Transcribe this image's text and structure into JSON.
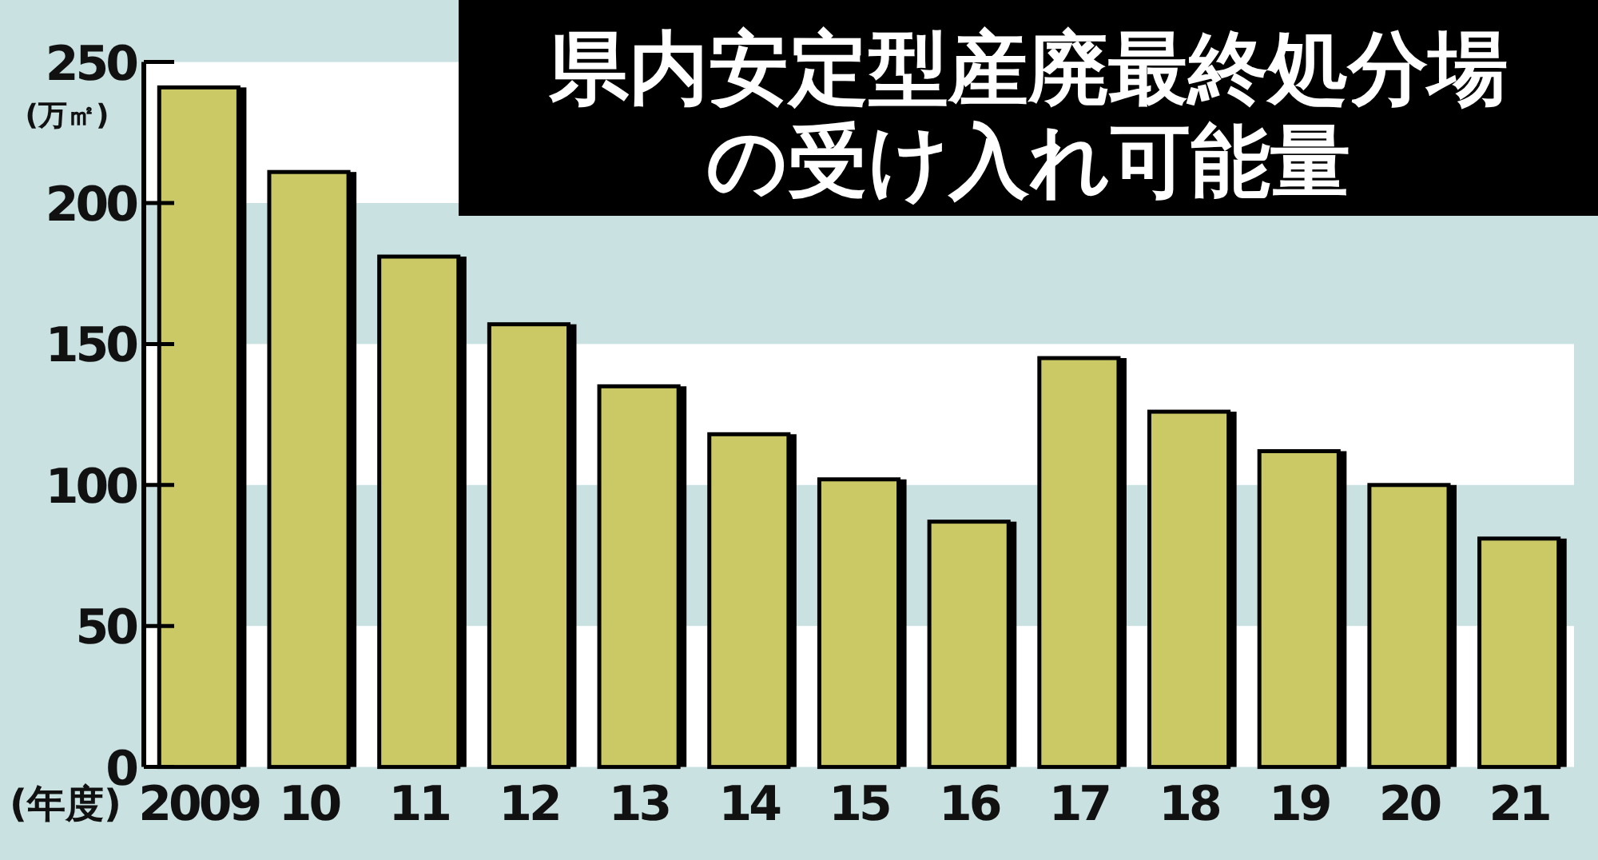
{
  "chart_data": {
    "type": "bar",
    "title": "県内安定型産廃最終処分場の受け入れ可能量",
    "ylabel": "(万㎡)",
    "xlabel": "(年度)",
    "categories": [
      "2009",
      "10",
      "11",
      "12",
      "13",
      "14",
      "15",
      "16",
      "17",
      "18",
      "19",
      "20",
      "21"
    ],
    "values": [
      241,
      211,
      181,
      157,
      135,
      118,
      102,
      87,
      145,
      126,
      112,
      100,
      81
    ],
    "color": "#cbc966",
    "ylim": [
      0,
      250
    ],
    "yticks": [
      0,
      50,
      100,
      150,
      200,
      250
    ]
  }
}
